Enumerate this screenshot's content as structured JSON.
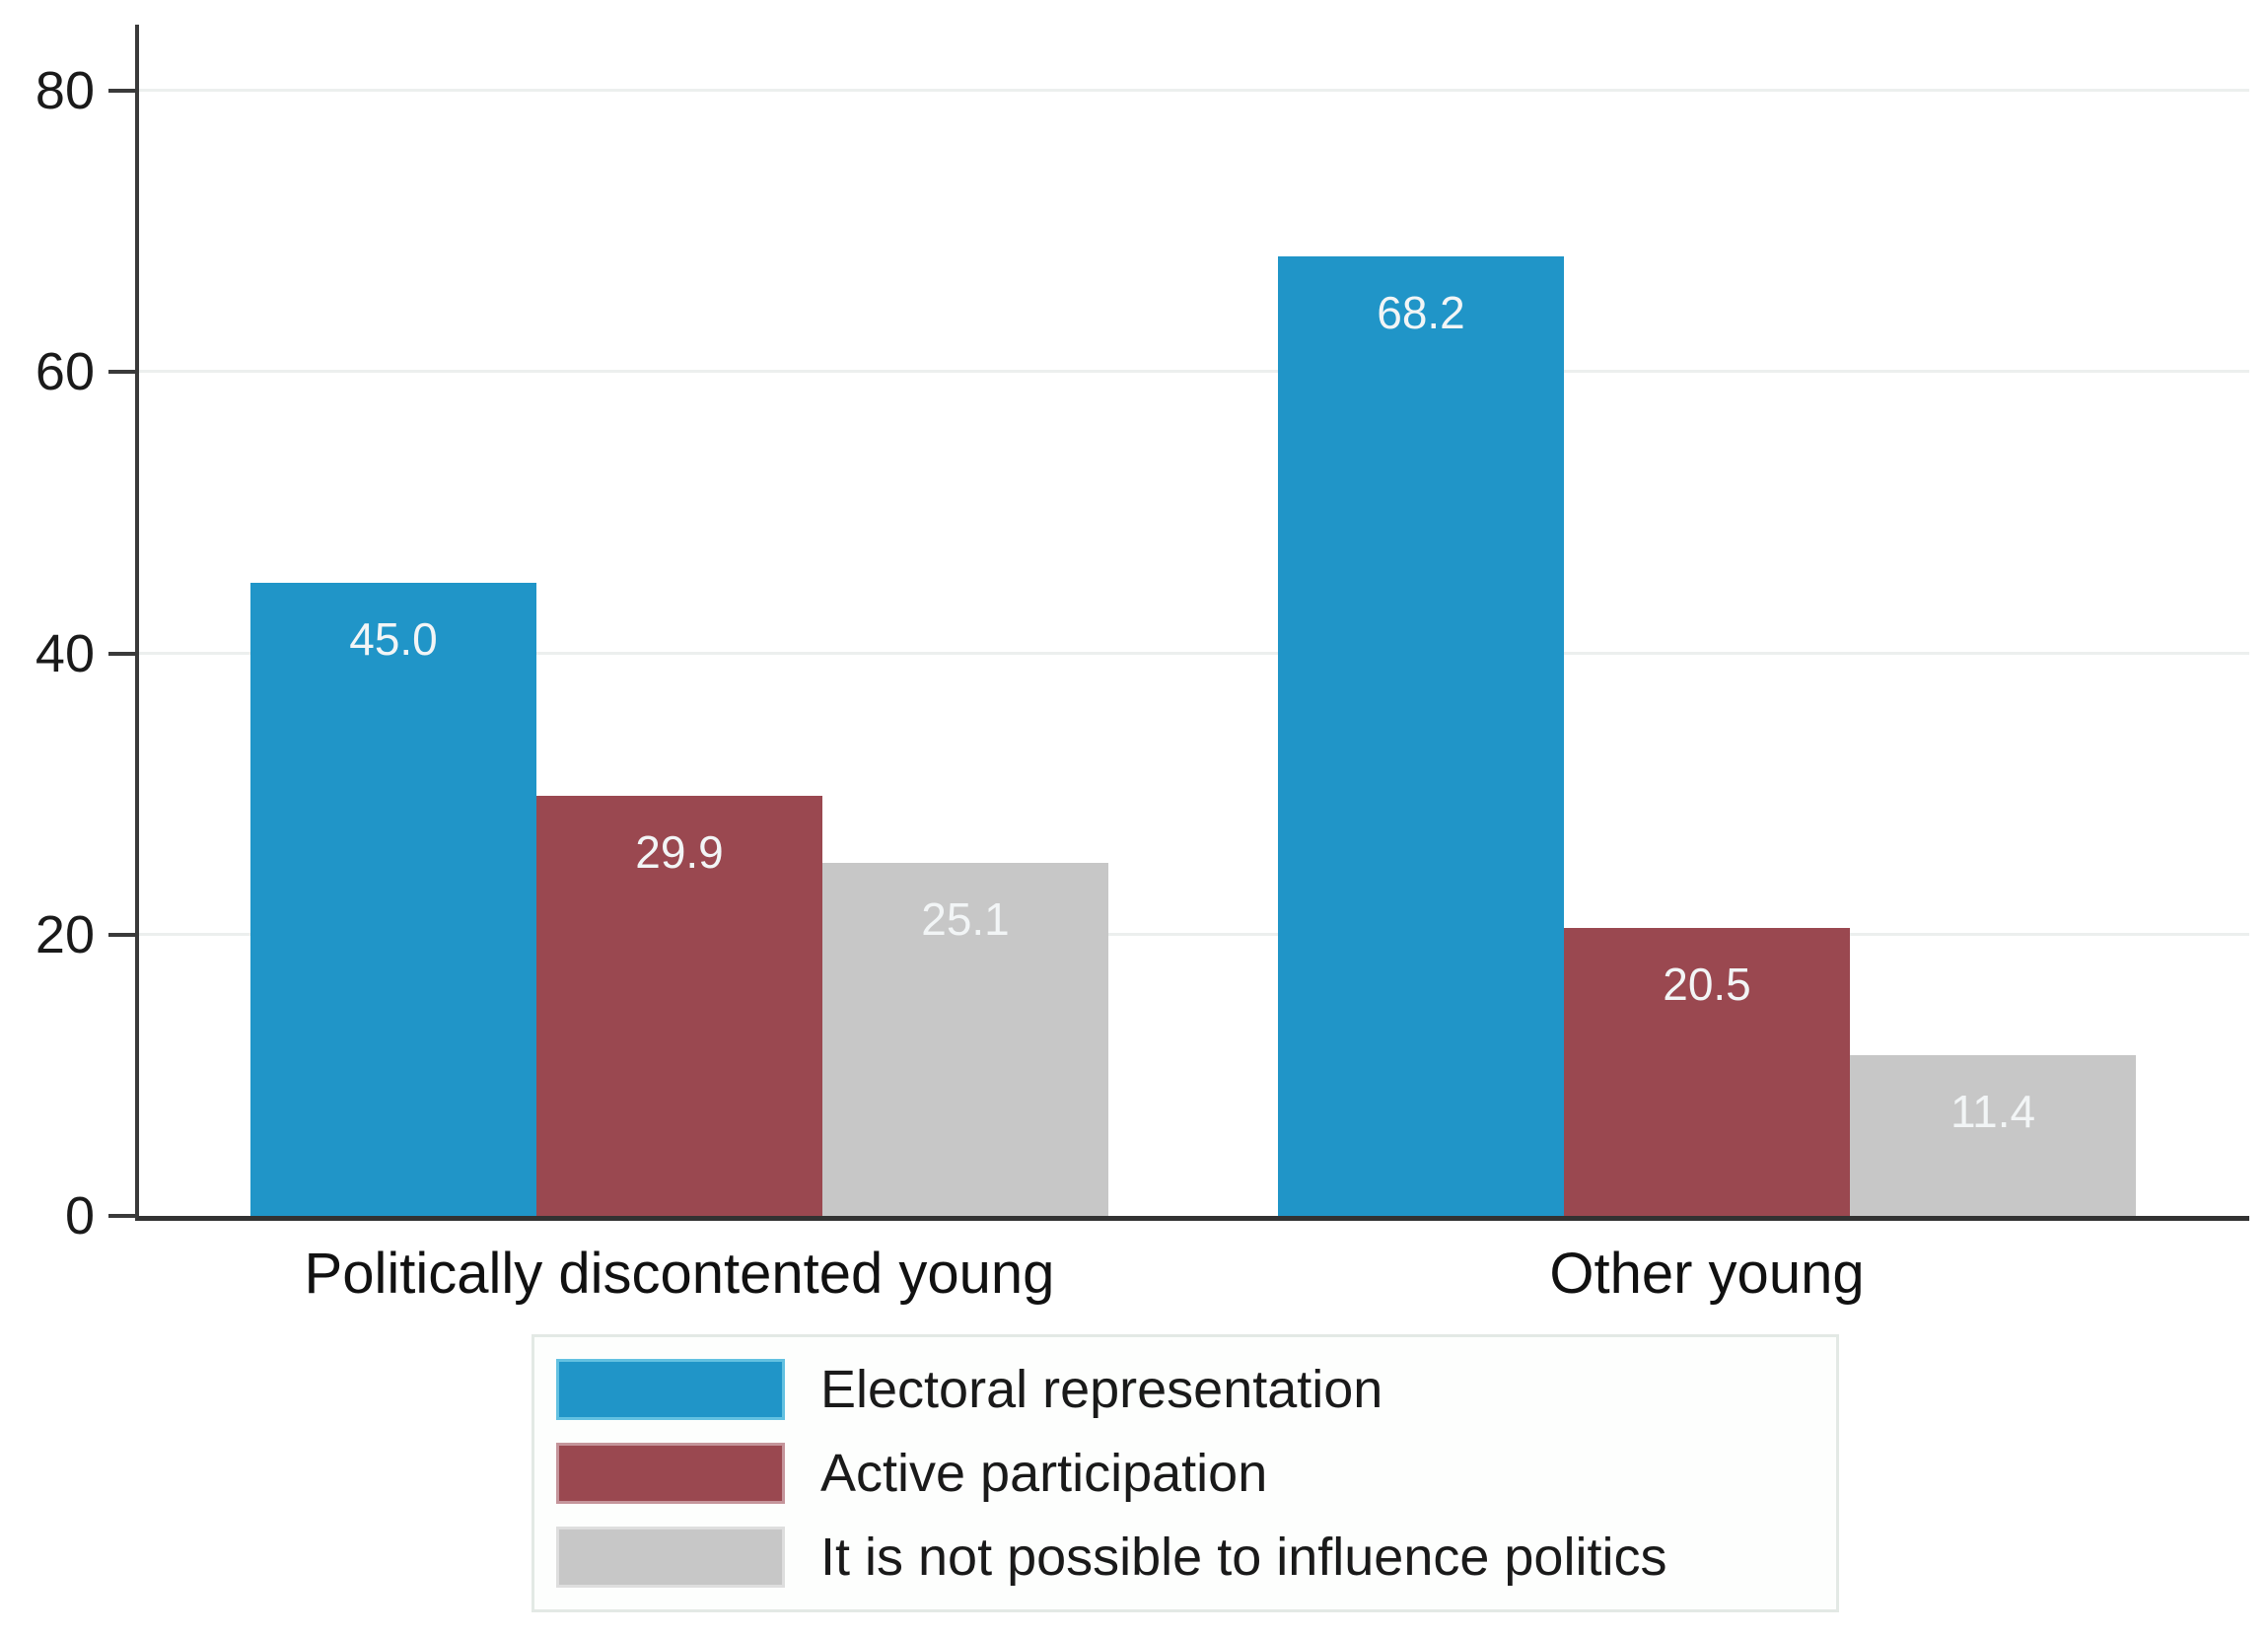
{
  "chart_data": {
    "type": "bar",
    "categories": [
      "Politically discontented young",
      "Other young"
    ],
    "series": [
      {
        "name": "Electoral representation",
        "color": "#2095c8",
        "edge_color": "#63c1e1",
        "values": [
          45.0,
          68.2
        ],
        "labels": [
          "45.0",
          "68.2"
        ]
      },
      {
        "name": "Active participation",
        "color": "#9a4850",
        "edge_color": "#c5959b",
        "values": [
          29.9,
          20.5
        ],
        "labels": [
          "29.9",
          "20.5"
        ]
      },
      {
        "name": "It is not possible to influence politics",
        "color": "#c7c7c7",
        "edge_color": "#dedede",
        "values": [
          25.1,
          11.4
        ],
        "labels": [
          "25.1",
          "11.4"
        ]
      }
    ],
    "title": "",
    "xlabel": "",
    "ylabel": "",
    "ylim": [
      0,
      84.7
    ],
    "yticks": [
      0,
      20,
      40,
      60,
      80
    ],
    "grid": true,
    "legend_position": "bottom-center",
    "value_label_position": "inside-top",
    "colors": {
      "background": "#ffffff",
      "axis": "#3a3a3a",
      "gridline": "#ecefee",
      "tick_label": "#1a1a1a",
      "value_label": "#f2f5f6",
      "legend_border": "#e3e9e5",
      "legend_background": "#fdfefd",
      "legend_text": "#1a1a1a",
      "category_label": "#111111"
    }
  }
}
